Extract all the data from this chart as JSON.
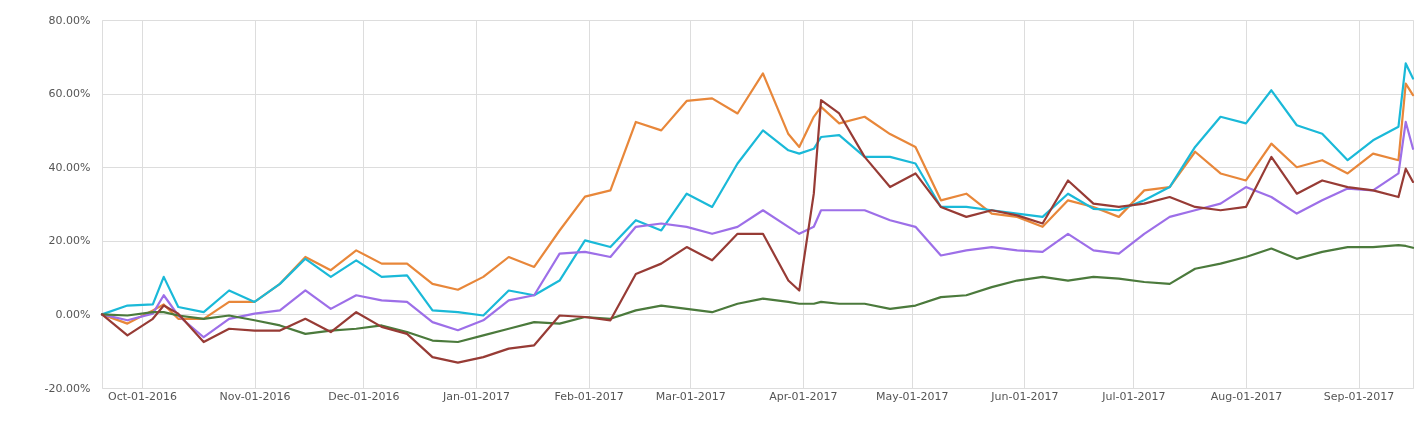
{
  "chart_data": {
    "type": "line",
    "x": [
      "2016-09-20",
      "2016-09-27",
      "2016-10-04",
      "2016-10-07",
      "2016-10-11",
      "2016-10-18",
      "2016-10-25",
      "2016-11-01",
      "2016-11-08",
      "2016-11-15",
      "2016-11-22",
      "2016-11-29",
      "2016-12-06",
      "2016-12-13",
      "2016-12-20",
      "2016-12-27",
      "2017-01-03",
      "2017-01-10",
      "2017-01-17",
      "2017-01-24",
      "2017-01-31",
      "2017-02-07",
      "2017-02-14",
      "2017-02-21",
      "2017-02-28",
      "2017-03-07",
      "2017-03-14",
      "2017-03-21",
      "2017-03-28",
      "2017-03-31",
      "2017-04-04",
      "2017-04-06",
      "2017-04-11",
      "2017-04-18",
      "2017-04-25",
      "2017-05-02",
      "2017-05-09",
      "2017-05-16",
      "2017-05-23",
      "2017-05-30",
      "2017-06-06",
      "2017-06-13",
      "2017-06-20",
      "2017-06-27",
      "2017-07-04",
      "2017-07-11",
      "2017-07-18",
      "2017-07-25",
      "2017-08-01",
      "2017-08-08",
      "2017-08-15",
      "2017-08-22",
      "2017-08-29",
      "2017-09-05",
      "2017-09-12",
      "2017-09-14",
      "2017-09-16"
    ],
    "series": [
      {
        "color": "#e8873a",
        "values": [
          0,
          -2.5,
          1.1,
          2.7,
          -1.2,
          -1.2,
          3.4,
          3.4,
          8.3,
          15.6,
          12,
          17.4,
          13.8,
          13.8,
          8.3,
          6.7,
          10.2,
          15.6,
          12.9,
          22.8,
          32,
          33.7,
          52.3,
          50,
          58,
          58.7,
          54.6,
          65.5,
          49,
          45.5,
          53.7,
          56.4,
          51.9,
          53.7,
          49,
          45.5,
          31,
          32.8,
          27.4,
          26.5,
          23.8,
          31,
          29.2,
          26.5,
          33.7,
          34.6,
          44.2,
          38.3,
          36.4,
          46.4,
          40,
          41.9,
          38.3,
          43.7,
          41.9,
          62.7,
          59.6
        ]
      },
      {
        "color": "#1ab9d8",
        "values": [
          0,
          2.4,
          2.7,
          10.2,
          2,
          0.6,
          6.5,
          3.4,
          8.3,
          15.1,
          10.2,
          14.7,
          10.2,
          10.6,
          1.1,
          0.6,
          -0.3,
          6.5,
          5.2,
          9.2,
          20.1,
          18.3,
          25.6,
          22.8,
          32.8,
          29.2,
          41,
          50,
          44.6,
          43.7,
          45,
          48.2,
          48.7,
          42.8,
          42.8,
          41,
          29.2,
          29.2,
          28.3,
          27.4,
          26.5,
          32.8,
          28.7,
          28.3,
          31,
          34.6,
          45.5,
          53.7,
          51.9,
          60.9,
          51.4,
          49.1,
          41.9,
          47.3,
          51,
          68.2,
          64.1
        ]
      },
      {
        "color": "#9d6fe8",
        "values": [
          0,
          -1.6,
          0.2,
          5.2,
          -0.3,
          -6.2,
          -1.2,
          0.2,
          1.1,
          6.5,
          1.5,
          5.2,
          3.8,
          3.4,
          -2.1,
          -4.3,
          -1.6,
          3.8,
          5.2,
          16.5,
          17,
          15.6,
          23.8,
          24.7,
          23.8,
          21.9,
          23.8,
          28.3,
          23.8,
          21.9,
          23.8,
          28.3,
          28.3,
          28.3,
          25.6,
          23.8,
          16,
          17.4,
          18.3,
          17.4,
          17,
          21.9,
          17.4,
          16.5,
          21.9,
          26.5,
          28.3,
          30.1,
          34.6,
          31.9,
          27.4,
          31,
          34.2,
          33.7,
          38.3,
          52.3,
          45
        ]
      },
      {
        "color": "#4b7a3c",
        "values": [
          0,
          -0.3,
          0.6,
          0.6,
          -0.3,
          -1.2,
          -0.3,
          -1.6,
          -3,
          -5.3,
          -4.4,
          -3.9,
          -3,
          -4.8,
          -7.1,
          -7.5,
          -5.7,
          -3.9,
          -2.1,
          -2.5,
          -0.7,
          -1.2,
          1.1,
          2.4,
          1.5,
          0.6,
          2.9,
          4.3,
          3.4,
          2.9,
          2.9,
          3.4,
          2.9,
          2.9,
          1.5,
          2.4,
          4.7,
          5.2,
          7.4,
          9.2,
          10.2,
          9.2,
          10.2,
          9.7,
          8.8,
          8.3,
          12.4,
          13.8,
          15.6,
          17.9,
          15.1,
          17,
          18.3,
          18.3,
          18.8,
          18.6,
          18.1
        ]
      },
      {
        "color": "#973b35",
        "values": [
          0,
          -5.7,
          -1.2,
          2.4,
          0.2,
          -7.5,
          -3.9,
          -4.4,
          -4.4,
          -1.2,
          -4.8,
          0.6,
          -3.4,
          -5.3,
          -11.6,
          -13.1,
          -11.6,
          -9.3,
          -8.4,
          -0.3,
          -0.7,
          -1.6,
          11,
          13.8,
          18.3,
          14.7,
          21.9,
          21.9,
          9.2,
          6.5,
          32.8,
          58.2,
          54.6,
          42.8,
          34.6,
          38.3,
          29.2,
          26.5,
          28.3,
          26.9,
          24.7,
          36.4,
          30.1,
          29.2,
          30.1,
          31.9,
          29.2,
          28.3,
          29.2,
          42.8,
          32.8,
          36.4,
          34.6,
          33.7,
          31.9,
          39.6,
          36
        ]
      }
    ],
    "xlim": [
      "2016-09-20",
      "2017-09-16"
    ],
    "xticks": [
      {
        "value": "2016-10-01",
        "label": "Oct-01-2016"
      },
      {
        "value": "2016-11-01",
        "label": "Nov-01-2016"
      },
      {
        "value": "2016-12-01",
        "label": "Dec-01-2016"
      },
      {
        "value": "2017-01-01",
        "label": "Jan-01-2017"
      },
      {
        "value": "2017-02-01",
        "label": "Feb-01-2017"
      },
      {
        "value": "2017-03-01",
        "label": "Mar-01-2017"
      },
      {
        "value": "2017-04-01",
        "label": "Apr-01-2017"
      },
      {
        "value": "2017-05-01",
        "label": "May-01-2017"
      },
      {
        "value": "2017-06-01",
        "label": "Jun-01-2017"
      },
      {
        "value": "2017-07-01",
        "label": "Jul-01-2017"
      },
      {
        "value": "2017-08-01",
        "label": "Aug-01-2017"
      },
      {
        "value": "2017-09-01",
        "label": "Sep-01-2017"
      }
    ],
    "ylim": [
      -20,
      80
    ],
    "yticks": [
      {
        "value": -20,
        "label": "-20.00%"
      },
      {
        "value": 0,
        "label": "0.00%"
      },
      {
        "value": 20,
        "label": "20.00%"
      },
      {
        "value": 40,
        "label": "40.00%"
      },
      {
        "value": 60,
        "label": "60.00%"
      },
      {
        "value": 80,
        "label": "80.00%"
      }
    ],
    "grid": true,
    "marker": "none",
    "line_style": "solid"
  }
}
